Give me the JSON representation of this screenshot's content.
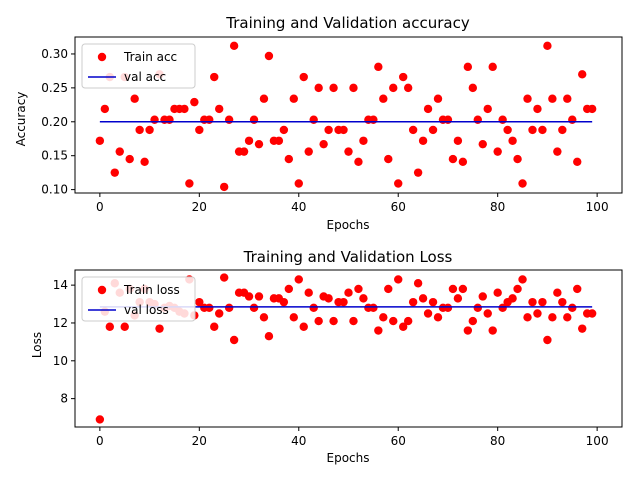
{
  "chart_data": [
    {
      "type": "scatter",
      "title": "Training and Validation accuracy",
      "xlabel": "Epochs",
      "ylabel": "Accuracy",
      "xlim": [
        -5,
        105
      ],
      "ylim": [
        0.095,
        0.325
      ],
      "xticks": [
        0,
        20,
        40,
        60,
        80,
        100
      ],
      "yticks": [
        0.1,
        0.15,
        0.2,
        0.25,
        0.3
      ],
      "yticks_labels": [
        "0.10",
        "0.15",
        "0.20",
        "0.25",
        "0.30"
      ],
      "legend_position": "top-left",
      "series": [
        {
          "name": "Train acc",
          "kind": "scatter",
          "color": "#ff0000",
          "x": [
            0,
            1,
            2,
            3,
            4,
            5,
            6,
            7,
            8,
            9,
            10,
            11,
            12,
            13,
            14,
            15,
            16,
            17,
            18,
            19,
            20,
            21,
            22,
            23,
            24,
            25,
            26,
            27,
            28,
            29,
            30,
            31,
            32,
            33,
            34,
            35,
            36,
            37,
            38,
            39,
            40,
            41,
            42,
            43,
            44,
            45,
            46,
            47,
            48,
            49,
            50,
            51,
            52,
            53,
            54,
            55,
            56,
            57,
            58,
            59,
            60,
            61,
            62,
            63,
            64,
            65,
            66,
            67,
            68,
            69,
            70,
            71,
            72,
            73,
            74,
            75,
            76,
            77,
            78,
            79,
            80,
            81,
            82,
            83,
            84,
            85,
            86,
            87,
            88,
            89,
            90,
            91,
            92,
            93,
            94,
            95,
            96,
            97,
            98,
            99
          ],
          "y": [
            0.172,
            0.219,
            0.266,
            0.125,
            0.156,
            0.266,
            0.145,
            0.234,
            0.188,
            0.141,
            0.188,
            0.203,
            0.27,
            0.203,
            0.203,
            0.219,
            0.219,
            0.219,
            0.109,
            0.229,
            0.188,
            0.203,
            0.203,
            0.266,
            0.219,
            0.104,
            0.203,
            0.312,
            0.156,
            0.156,
            0.172,
            0.203,
            0.167,
            0.234,
            0.297,
            0.172,
            0.172,
            0.188,
            0.145,
            0.234,
            0.109,
            0.266,
            0.156,
            0.203,
            0.25,
            0.167,
            0.188,
            0.25,
            0.188,
            0.188,
            0.156,
            0.25,
            0.141,
            0.172,
            0.203,
            0.203,
            0.281,
            0.234,
            0.145,
            0.25,
            0.109,
            0.266,
            0.25,
            0.188,
            0.125,
            0.172,
            0.219,
            0.188,
            0.234,
            0.203,
            0.203,
            0.145,
            0.172,
            0.141,
            0.281,
            0.25,
            0.203,
            0.167,
            0.219,
            0.281,
            0.156,
            0.203,
            0.188,
            0.172,
            0.145,
            0.109,
            0.234,
            0.188,
            0.219,
            0.188,
            0.312,
            0.234,
            0.156,
            0.188,
            0.234,
            0.203,
            0.141,
            0.27,
            0.219,
            0.219
          ]
        },
        {
          "name": "val acc",
          "kind": "line",
          "color": "#0000cc",
          "x": [
            0,
            99
          ],
          "y": [
            0.2,
            0.2
          ]
        }
      ]
    },
    {
      "type": "scatter",
      "title": "Training and Validation Loss",
      "xlabel": "Epochs",
      "ylabel": "Loss",
      "xlim": [
        -5,
        105
      ],
      "ylim": [
        6.5,
        14.8
      ],
      "xticks": [
        0,
        20,
        40,
        60,
        80,
        100
      ],
      "yticks": [
        8,
        10,
        12,
        14
      ],
      "yticks_labels": [
        "8",
        "10",
        "12",
        "14"
      ],
      "legend_position": "top-left",
      "series": [
        {
          "name": "Train loss",
          "kind": "scatter",
          "color": "#ff0000",
          "x": [
            0,
            1,
            2,
            3,
            4,
            5,
            6,
            7,
            8,
            9,
            10,
            11,
            12,
            13,
            14,
            15,
            16,
            17,
            18,
            19,
            20,
            21,
            22,
            23,
            24,
            25,
            26,
            27,
            28,
            29,
            30,
            31,
            32,
            33,
            34,
            35,
            36,
            37,
            38,
            39,
            40,
            41,
            42,
            43,
            44,
            45,
            46,
            47,
            48,
            49,
            50,
            51,
            52,
            53,
            54,
            55,
            56,
            57,
            58,
            59,
            60,
            61,
            62,
            63,
            64,
            65,
            66,
            67,
            68,
            69,
            70,
            71,
            72,
            73,
            74,
            75,
            76,
            77,
            78,
            79,
            80,
            81,
            82,
            83,
            84,
            85,
            86,
            87,
            88,
            89,
            90,
            91,
            92,
            93,
            94,
            95,
            96,
            97,
            98,
            99
          ],
          "y": [
            6.9,
            12.6,
            11.8,
            14.1,
            13.6,
            11.8,
            13.8,
            12.4,
            13.1,
            13.8,
            13.1,
            13.0,
            11.7,
            12.8,
            12.9,
            12.8,
            12.6,
            12.5,
            14.3,
            12.4,
            13.1,
            12.8,
            12.8,
            11.8,
            12.5,
            14.4,
            12.8,
            11.1,
            13.6,
            13.6,
            13.4,
            12.8,
            13.4,
            12.3,
            11.3,
            13.3,
            13.3,
            13.1,
            13.8,
            12.3,
            14.3,
            11.8,
            13.6,
            12.8,
            12.1,
            13.4,
            13.3,
            12.1,
            13.1,
            13.1,
            13.6,
            12.1,
            13.8,
            13.3,
            12.8,
            12.8,
            11.6,
            12.3,
            13.8,
            12.1,
            14.3,
            11.8,
            12.1,
            13.1,
            14.1,
            13.3,
            12.5,
            13.1,
            12.3,
            12.8,
            12.8,
            13.8,
            13.3,
            13.8,
            11.6,
            12.1,
            12.8,
            13.4,
            12.5,
            11.6,
            13.6,
            12.8,
            13.1,
            13.3,
            13.8,
            14.3,
            12.3,
            13.1,
            12.5,
            13.1,
            11.1,
            12.3,
            13.6,
            13.1,
            12.3,
            12.8,
            13.8,
            11.7,
            12.5,
            12.5
          ]
        },
        {
          "name": "val loss",
          "kind": "line",
          "color": "#0000cc",
          "x": [
            0,
            99
          ],
          "y": [
            12.85,
            12.85
          ]
        }
      ]
    }
  ]
}
